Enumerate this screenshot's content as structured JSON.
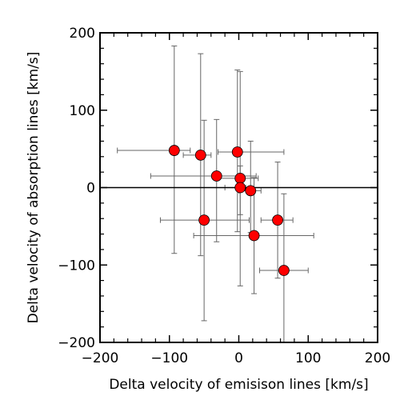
{
  "chart_data": {
    "type": "scatter",
    "xlabel": "Delta velocity of emisison lines [km/s]",
    "ylabel": "Delta velocity of absorption lines [km/s]",
    "xlim": [
      -200,
      200
    ],
    "ylim": [
      -200,
      200
    ],
    "xticks": [
      -200,
      -100,
      0,
      100,
      200
    ],
    "yticks": [
      -200,
      -100,
      0,
      100,
      200
    ],
    "xtick_labels": [
      "−200",
      "−100",
      "0",
      "100",
      "200"
    ],
    "ytick_labels": [
      "−200",
      "−100",
      "0",
      "100",
      "200"
    ],
    "reference_line_y": 0,
    "colors": {
      "marker": "#ff0000",
      "errorbar": "#666666",
      "axis": "#000000"
    },
    "points": [
      {
        "x": -93,
        "y": 48,
        "x_lo": -175,
        "x_hi": -70,
        "y_lo": -85,
        "y_hi": 183
      },
      {
        "x": -55,
        "y": 42,
        "x_lo": -80,
        "x_hi": -40,
        "y_lo": -88,
        "y_hi": 173
      },
      {
        "x": -50,
        "y": -42,
        "x_lo": -113,
        "x_hi": 15,
        "y_lo": -172,
        "y_hi": 87
      },
      {
        "x": -32,
        "y": 15,
        "x_lo": -127,
        "x_hi": 25,
        "y_lo": -70,
        "y_hi": 88
      },
      {
        "x": -2,
        "y": 46,
        "x_lo": -30,
        "x_hi": 65,
        "y_lo": -57,
        "y_hi": 152
      },
      {
        "x": 2,
        "y": 12,
        "x_lo": -30,
        "x_hi": 28,
        "y_lo": -127,
        "y_hi": 150
      },
      {
        "x": 2,
        "y": 0,
        "x_lo": -20,
        "x_hi": 10,
        "y_lo": -35,
        "y_hi": 28
      },
      {
        "x": 17,
        "y": -4,
        "x_lo": 0,
        "x_hi": 32,
        "y_lo": -58,
        "y_hi": 60
      },
      {
        "x": 22,
        "y": -62,
        "x_lo": -65,
        "x_hi": 108,
        "y_lo": -137,
        "y_hi": 13
      },
      {
        "x": 56,
        "y": -42,
        "x_lo": 32,
        "x_hi": 78,
        "y_lo": -117,
        "y_hi": 33
      },
      {
        "x": 65,
        "y": -107,
        "x_lo": 30,
        "x_hi": 100,
        "y_lo": -200,
        "y_hi": -8
      }
    ]
  }
}
